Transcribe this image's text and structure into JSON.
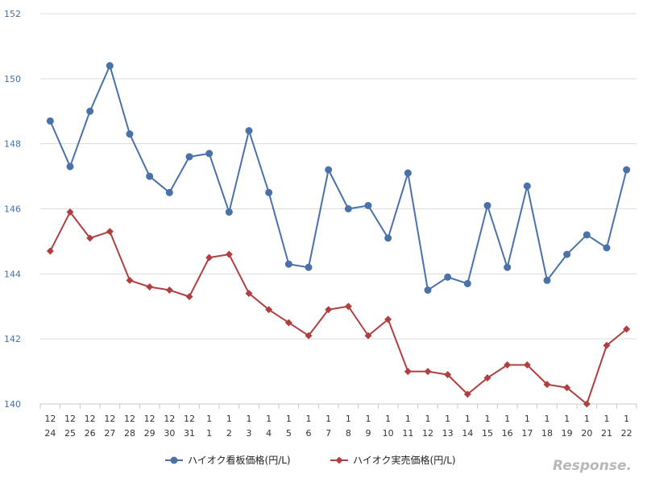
{
  "chart_data": {
    "type": "line",
    "title": "",
    "xlabel": "",
    "ylabel": "",
    "ylim": [
      140,
      152
    ],
    "yticks": [
      140,
      142,
      144,
      146,
      148,
      150,
      152
    ],
    "grid": true,
    "legend_position": "bottom",
    "categories": [
      {
        "month": "12",
        "day": "24"
      },
      {
        "month": "12",
        "day": "25"
      },
      {
        "month": "12",
        "day": "26"
      },
      {
        "month": "12",
        "day": "27"
      },
      {
        "month": "12",
        "day": "28"
      },
      {
        "month": "12",
        "day": "29"
      },
      {
        "month": "12",
        "day": "30"
      },
      {
        "month": "12",
        "day": "31"
      },
      {
        "month": "1",
        "day": "1"
      },
      {
        "month": "1",
        "day": "2"
      },
      {
        "month": "1",
        "day": "3"
      },
      {
        "month": "1",
        "day": "4"
      },
      {
        "month": "1",
        "day": "5"
      },
      {
        "month": "1",
        "day": "6"
      },
      {
        "month": "1",
        "day": "7"
      },
      {
        "month": "1",
        "day": "8"
      },
      {
        "month": "1",
        "day": "9"
      },
      {
        "month": "1",
        "day": "10"
      },
      {
        "month": "1",
        "day": "11"
      },
      {
        "month": "1",
        "day": "12"
      },
      {
        "month": "1",
        "day": "13"
      },
      {
        "month": "1",
        "day": "14"
      },
      {
        "month": "1",
        "day": "15"
      },
      {
        "month": "1",
        "day": "16"
      },
      {
        "month": "1",
        "day": "17"
      },
      {
        "month": "1",
        "day": "18"
      },
      {
        "month": "1",
        "day": "19"
      },
      {
        "month": "1",
        "day": "20"
      },
      {
        "month": "1",
        "day": "21"
      },
      {
        "month": "1",
        "day": "22"
      }
    ],
    "series": [
      {
        "name": "ハイオク看板価格(円/L)",
        "color": "#4a72a8",
        "marker": "circle",
        "values": [
          148.7,
          147.3,
          149.0,
          150.4,
          148.3,
          147.0,
          146.5,
          147.6,
          147.7,
          145.9,
          148.4,
          146.5,
          144.3,
          144.2,
          147.2,
          146.0,
          146.1,
          145.1,
          147.1,
          143.5,
          143.9,
          143.7,
          146.1,
          144.2,
          146.7,
          143.8,
          144.6,
          145.2,
          144.8,
          147.2
        ]
      },
      {
        "name": "ハイオク実売価格(円/L)",
        "color": "#b04040",
        "marker": "diamond",
        "values": [
          144.7,
          145.9,
          145.1,
          145.3,
          143.8,
          143.6,
          143.5,
          143.3,
          144.5,
          144.6,
          143.4,
          142.9,
          142.5,
          142.1,
          142.9,
          143.0,
          142.1,
          142.6,
          141.0,
          141.0,
          140.9,
          140.3,
          140.8,
          141.2,
          141.2,
          140.6,
          140.5,
          140.0,
          141.8,
          142.3
        ]
      }
    ]
  },
  "watermark": "Response."
}
